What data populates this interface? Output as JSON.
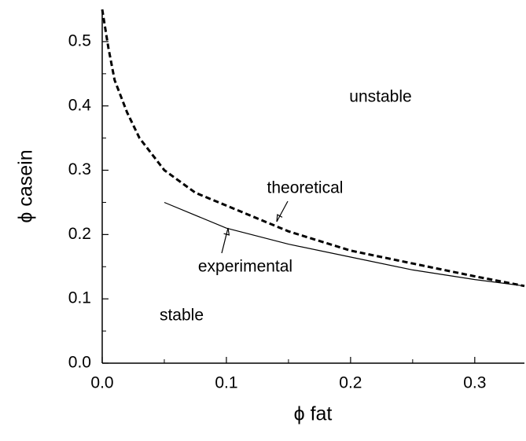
{
  "chart_data": {
    "type": "line",
    "x_label": "ϕ fat",
    "y_label": "ϕ casein",
    "xlim": [
      0,
      0.34
    ],
    "ylim": [
      0,
      0.55
    ],
    "xticks": [
      {
        "value": 0,
        "label": "0.0"
      },
      0.1,
      0.2,
      0.3
    ],
    "yticks": [
      {
        "value": 0,
        "label": "0.0"
      },
      0.1,
      0.2,
      0.3,
      0.4,
      0.5
    ],
    "xminorticks": [
      0.05,
      0.15,
      0.25
    ],
    "yminorticks": [
      0.05,
      0.15,
      0.25,
      0.35,
      0.45
    ],
    "series": [
      {
        "name": "theoretical",
        "color": "#000000",
        "dash": true,
        "x": [
          0,
          0.005,
          0.01,
          0.02,
          0.03,
          0.05,
          0.075,
          0.1,
          0.15,
          0.2,
          0.25,
          0.3,
          0.34
        ],
        "values": [
          0.55,
          0.49,
          0.44,
          0.39,
          0.35,
          0.3,
          0.265,
          0.245,
          0.205,
          0.175,
          0.155,
          0.135,
          0.12
        ]
      },
      {
        "name": "experimental",
        "color": "#000000",
        "dash": false,
        "x": [
          0.05,
          0.1,
          0.15,
          0.2,
          0.25,
          0.3,
          0.34
        ],
        "values": [
          0.25,
          0.21,
          0.185,
          0.165,
          0.145,
          0.13,
          0.12
        ]
      }
    ],
    "annotations": [
      "unstable",
      "stable"
    ]
  }
}
